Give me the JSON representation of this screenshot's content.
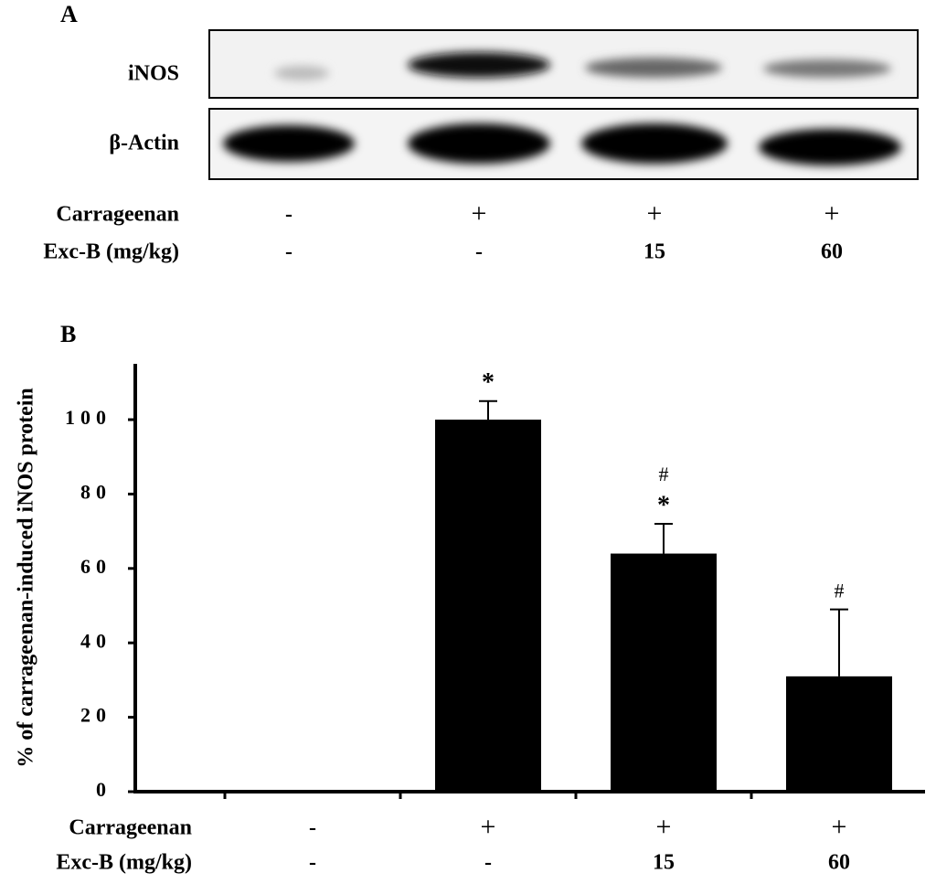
{
  "blot": {
    "label": "A",
    "rows": [
      "iNOS",
      "β-Actin"
    ],
    "conditions": [
      {
        "name": "Carrageenan",
        "values": [
          "-",
          "+",
          "+",
          "+"
        ]
      },
      {
        "name": "Exc-B (mg/kg)",
        "values": [
          "-",
          "-",
          "15",
          "60"
        ]
      }
    ]
  },
  "chart_data": {
    "type": "bar",
    "label": "B",
    "ylabel": "% of carrageenan-induced iNOS protein",
    "categories": [
      null,
      null,
      null,
      null
    ],
    "values": [
      0,
      100,
      64,
      31
    ],
    "errors": [
      0,
      5,
      8,
      18
    ],
    "color": "#000000",
    "annotations": [
      [],
      [
        "*"
      ],
      [
        "#",
        "*"
      ],
      [
        "#"
      ]
    ],
    "ylim": [
      0,
      115
    ],
    "yticks": [
      0,
      20,
      40,
      60,
      80,
      100
    ],
    "conditions": [
      {
        "name": "Carrageenan",
        "values": [
          "-",
          "+",
          "+",
          "+"
        ]
      },
      {
        "name": "Exc-B (mg/kg)",
        "values": [
          "-",
          "-",
          "15",
          "60"
        ]
      }
    ]
  }
}
